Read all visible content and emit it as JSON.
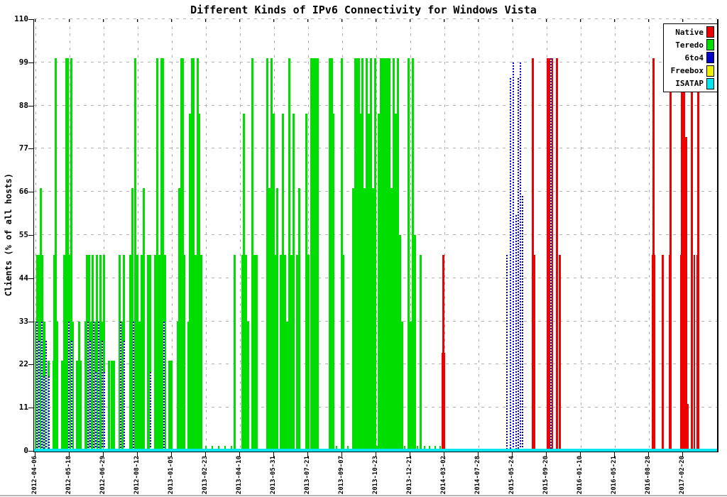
{
  "chart_data": {
    "type": "bar",
    "title": "Different Kinds of IPv6 Connectivity for Windows Vista",
    "ylabel": "Clients (% of all hosts)",
    "ylim": [
      0,
      110
    ],
    "yticks": [
      0,
      11,
      22,
      33,
      44,
      55,
      66,
      77,
      88,
      99,
      110
    ],
    "grid": true,
    "legend_position": "top-right",
    "legend": [
      {
        "name": "Native",
        "key": "N",
        "color": "#ee0000"
      },
      {
        "name": "Teredo",
        "key": "T",
        "color": "#00dd00"
      },
      {
        "name": "6to4",
        "key": "B",
        "color": "#0000cc",
        "style": "dashed-vertical"
      },
      {
        "name": "Freebox",
        "key": "F",
        "color": "#eeee00"
      },
      {
        "name": "ISATAP",
        "key": "I",
        "color": "#00e5ee"
      }
    ],
    "xticks": [
      {
        "label": "2012-04-06",
        "pos": 2
      },
      {
        "label": "2012-05-18",
        "pos": 50
      },
      {
        "label": "2012-06-29",
        "pos": 98
      },
      {
        "label": "2012-08-12",
        "pos": 146
      },
      {
        "label": "2013-01-05",
        "pos": 194
      },
      {
        "label": "2013-02-23",
        "pos": 242
      },
      {
        "label": "2013-04-10",
        "pos": 290
      },
      {
        "label": "2013-05-31",
        "pos": 338
      },
      {
        "label": "2013-07-21",
        "pos": 386
      },
      {
        "label": "2013-09-07",
        "pos": 434
      },
      {
        "label": "2013-10-23",
        "pos": 482
      },
      {
        "label": "2013-12-21",
        "pos": 530
      },
      {
        "label": "2014-03-02",
        "pos": 578
      },
      {
        "label": "2014-07-28",
        "pos": 626
      },
      {
        "label": "2015-05-24",
        "pos": 674
      },
      {
        "label": "2015-09-20",
        "pos": 722
      },
      {
        "label": "2016-01-10",
        "pos": 770
      },
      {
        "label": "2016-05-21",
        "pos": 818
      },
      {
        "label": "2016-08-28",
        "pos": 866
      },
      {
        "label": "2017-02-20",
        "pos": 914
      }
    ],
    "baseline": {
      "series": "I",
      "value": 0.7
    },
    "bars": {
      "T": [
        [
          1,
          33
        ],
        [
          3,
          50
        ],
        [
          5,
          50
        ],
        [
          8,
          67
        ],
        [
          10,
          50
        ],
        [
          13,
          33
        ],
        [
          15,
          23
        ],
        [
          19,
          23
        ],
        [
          26,
          23
        ],
        [
          27,
          50
        ],
        [
          29,
          100
        ],
        [
          31,
          33
        ],
        [
          38,
          23
        ],
        [
          41,
          50
        ],
        [
          44,
          100
        ],
        [
          46,
          100
        ],
        [
          49,
          50
        ],
        [
          51,
          100
        ],
        [
          53,
          33
        ],
        [
          59,
          23
        ],
        [
          62,
          33
        ],
        [
          64,
          23
        ],
        [
          71,
          33
        ],
        [
          73,
          50
        ],
        [
          76,
          50
        ],
        [
          79,
          33
        ],
        [
          81,
          50
        ],
        [
          84,
          33
        ],
        [
          87,
          50
        ],
        [
          89,
          33
        ],
        [
          92,
          50
        ],
        [
          94,
          33
        ],
        [
          97,
          50
        ],
        [
          104,
          23
        ],
        [
          108,
          23
        ],
        [
          111,
          23
        ],
        [
          119,
          50
        ],
        [
          122,
          33
        ],
        [
          125,
          50
        ],
        [
          134,
          50
        ],
        [
          137,
          67
        ],
        [
          141,
          100
        ],
        [
          144,
          50
        ],
        [
          147,
          33
        ],
        [
          150,
          50
        ],
        [
          153,
          67
        ],
        [
          159,
          50
        ],
        [
          162,
          50
        ],
        [
          169,
          50
        ],
        [
          172,
          100
        ],
        [
          175,
          50
        ],
        [
          178,
          100
        ],
        [
          180,
          100
        ],
        [
          183,
          50
        ],
        [
          189,
          23
        ],
        [
          192,
          23
        ],
        [
          201,
          33
        ],
        [
          203,
          67
        ],
        [
          206,
          100
        ],
        [
          208,
          100
        ],
        [
          210,
          50
        ],
        [
          216,
          33
        ],
        [
          218,
          86
        ],
        [
          221,
          100
        ],
        [
          223,
          100
        ],
        [
          226,
          50
        ],
        [
          229,
          100
        ],
        [
          231,
          86
        ],
        [
          234,
          50
        ],
        [
          281,
          50
        ],
        [
          292,
          50
        ],
        [
          294,
          86
        ],
        [
          297,
          50
        ],
        [
          300,
          33
        ],
        [
          306,
          100
        ],
        [
          309,
          50
        ],
        [
          312,
          50
        ],
        [
          327,
          100
        ],
        [
          330,
          67
        ],
        [
          333,
          100
        ],
        [
          336,
          86
        ],
        [
          339,
          50
        ],
        [
          341,
          67
        ],
        [
          346,
          50
        ],
        [
          349,
          86
        ],
        [
          352,
          50
        ],
        [
          355,
          33
        ],
        [
          358,
          100
        ],
        [
          361,
          50
        ],
        [
          364,
          86
        ],
        [
          369,
          50
        ],
        [
          372,
          67
        ],
        [
          382,
          86
        ],
        [
          385,
          50
        ],
        [
          389,
          100,
          4
        ],
        [
          393,
          100,
          4
        ],
        [
          397,
          100,
          4
        ],
        [
          415,
          100
        ],
        [
          418,
          100
        ],
        [
          420,
          86
        ],
        [
          432,
          100
        ],
        [
          434,
          50
        ],
        [
          448,
          67
        ],
        [
          451,
          100,
          4
        ],
        [
          455,
          100,
          4
        ],
        [
          458,
          86
        ],
        [
          461,
          100
        ],
        [
          464,
          67
        ],
        [
          467,
          100
        ],
        [
          470,
          86
        ],
        [
          473,
          100
        ],
        [
          476,
          67
        ],
        [
          479,
          100
        ],
        [
          484,
          86
        ],
        [
          487,
          100,
          4
        ],
        [
          491,
          100,
          4
        ],
        [
          495,
          100,
          4
        ],
        [
          499,
          100
        ],
        [
          502,
          67
        ],
        [
          505,
          100
        ],
        [
          508,
          86
        ],
        [
          511,
          100
        ],
        [
          514,
          55
        ],
        [
          517,
          33
        ],
        [
          526,
          100
        ],
        [
          529,
          33
        ],
        [
          532,
          100
        ],
        [
          535,
          55
        ],
        [
          543,
          50
        ],
        [
          241,
          1.2,
          2
        ],
        [
          250,
          1.2,
          2
        ],
        [
          259,
          1.2,
          2
        ],
        [
          268,
          1.2,
          2
        ],
        [
          277,
          1.2,
          2
        ],
        [
          425,
          1.2,
          2
        ],
        [
          441,
          1.2,
          2
        ],
        [
          482,
          1.2,
          2
        ],
        [
          521,
          1.2,
          2
        ],
        [
          539,
          1.2,
          2
        ],
        [
          549,
          1.2,
          2
        ],
        [
          556,
          1.2,
          2
        ],
        [
          564,
          1.2,
          2
        ],
        [
          571,
          1.2,
          2
        ]
      ],
      "B": [
        [
          3,
          33
        ],
        [
          6,
          28
        ],
        [
          10,
          33
        ],
        [
          13,
          19
        ],
        [
          16,
          28
        ],
        [
          20,
          19
        ],
        [
          48,
          33
        ],
        [
          52,
          28
        ],
        [
          75,
          33
        ],
        [
          78,
          28
        ],
        [
          83,
          33
        ],
        [
          86,
          20
        ],
        [
          90,
          33
        ],
        [
          95,
          28
        ],
        [
          98,
          20
        ],
        [
          121,
          33
        ],
        [
          126,
          28
        ],
        [
          139,
          33
        ],
        [
          163,
          20
        ],
        [
          182,
          33
        ],
        [
          665,
          50
        ],
        [
          670,
          95
        ],
        [
          674,
          99
        ],
        [
          678,
          60
        ],
        [
          681,
          95
        ],
        [
          684,
          99
        ],
        [
          687,
          65
        ],
        [
          727,
          100
        ]
      ],
      "N": [
        [
          574,
          25,
          5
        ],
        [
          575,
          50,
          3
        ],
        [
          701,
          100,
          3
        ],
        [
          704,
          50,
          2
        ],
        [
          722,
          100,
          4
        ],
        [
          725,
          100,
          3
        ],
        [
          729,
          100,
          2
        ],
        [
          735,
          100,
          3
        ],
        [
          739,
          50,
          3
        ],
        [
          870,
          50,
          5
        ],
        [
          871,
          100,
          3
        ],
        [
          884,
          50,
          3
        ],
        [
          894,
          50,
          4
        ],
        [
          895,
          99,
          3
        ],
        [
          910,
          50,
          10
        ],
        [
          911,
          99,
          3
        ],
        [
          914,
          99,
          3
        ],
        [
          917,
          80,
          3
        ],
        [
          920,
          12,
          2
        ],
        [
          925,
          99,
          3
        ],
        [
          929,
          50,
          2
        ],
        [
          933,
          50,
          4
        ],
        [
          934,
          99,
          3
        ]
      ],
      "F": []
    }
  }
}
